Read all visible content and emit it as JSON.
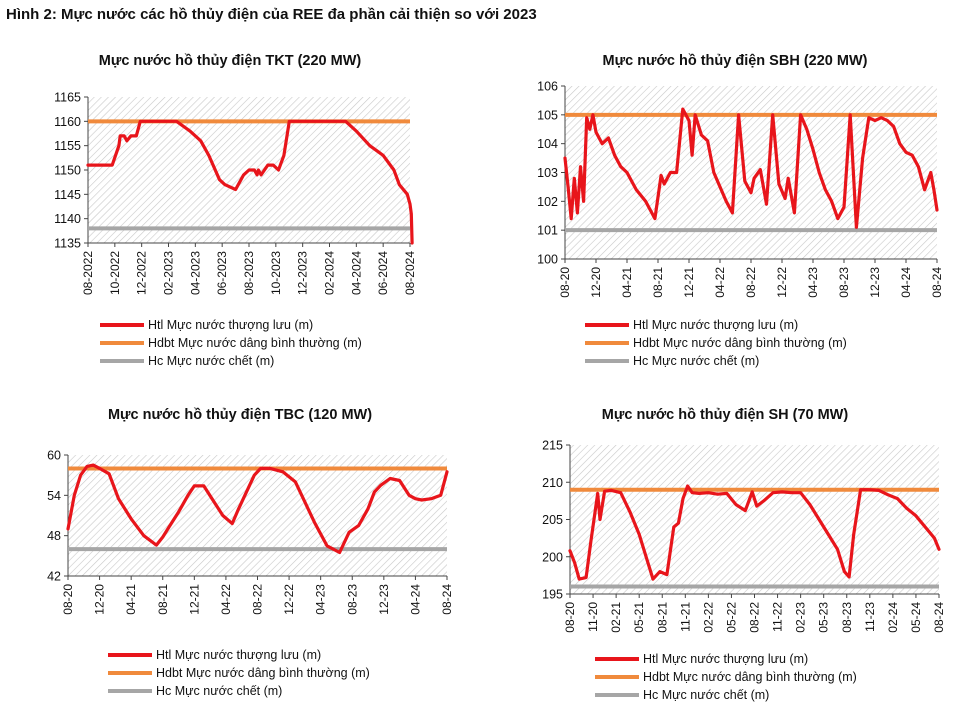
{
  "figure_title": "Hình 2: Mực nước các hồ thủy điện của REE đa phần cải thiện so với 2023",
  "colors": {
    "htl": "#e8151b",
    "hdbt": "#f08a3c",
    "hc": "#a6a6a6",
    "hatch": "#c8c8c8",
    "axis": "#444444"
  },
  "chart_data": [
    {
      "id": "tkt",
      "type": "line",
      "title": "Mực nước hồ thủy điện TKT (220 MW)",
      "ylim": [
        1135,
        1165
      ],
      "yticks": [
        1135,
        1140,
        1145,
        1150,
        1155,
        1160,
        1165
      ],
      "xticks": [
        "08-2022",
        "10-2022",
        "12-2022",
        "02-2023",
        "04-2023",
        "06-2023",
        "08-2023",
        "10-2023",
        "12-2023",
        "02-2024",
        "04-2024",
        "06-2024",
        "08-2024"
      ],
      "grid": false,
      "hatched_background": true,
      "reference_lines": [
        {
          "name": "Hdbt Mực nước dâng bình thường (m)",
          "value": 1160
        },
        {
          "name": "Hc Mực nước chết (m)",
          "value": 1138
        }
      ],
      "series": [
        {
          "name": "Htl Mực nước thượng lưu (m)",
          "x": [
            0,
            0.9,
            1.15,
            1.2,
            1.35,
            1.45,
            1.6,
            1.8,
            1.95,
            2.3,
            2.7,
            3.3,
            3.8,
            4.2,
            4.5,
            4.9,
            5.1,
            5.5,
            5.8,
            6.0,
            6.2,
            6.3,
            6.35,
            6.45,
            6.7,
            6.9,
            7.1,
            7.3,
            7.5,
            8.0,
            8.7,
            9.2,
            9.6,
            10.0,
            10.5,
            11.0,
            11.4,
            11.6,
            11.9,
            12.0,
            12.05,
            12.08
          ],
          "values": [
            1151,
            1151,
            1155,
            1157,
            1157,
            1156,
            1157,
            1157,
            1160,
            1160,
            1160,
            1160,
            1158,
            1156,
            1153,
            1148,
            1147,
            1146,
            1149,
            1150,
            1150,
            1149,
            1150,
            1149,
            1151,
            1151,
            1150,
            1153,
            1160,
            1160,
            1160,
            1160,
            1160,
            1158,
            1155,
            1153,
            1150,
            1147,
            1145,
            1143,
            1141,
            1135
          ]
        }
      ]
    },
    {
      "id": "sbh",
      "type": "line",
      "title": "Mực nước hồ thủy điện SBH (220 MW)",
      "ylim": [
        100,
        106
      ],
      "yticks": [
        100,
        101,
        102,
        103,
        104,
        105,
        106
      ],
      "xticks": [
        "08-20",
        "12-20",
        "04-21",
        "08-21",
        "12-21",
        "04-22",
        "08-22",
        "12-22",
        "04-23",
        "08-23",
        "12-23",
        "04-24",
        "08-24"
      ],
      "grid": false,
      "hatched_background": true,
      "reference_lines": [
        {
          "name": "Hdbt Mực nước dâng bình thường (m)",
          "value": 105
        },
        {
          "name": "Hc Mực nước chết (m)",
          "value": 101
        }
      ],
      "series": [
        {
          "name": "Htl Mực nước thượng lưu (m)",
          "x": [
            0,
            0.1,
            0.2,
            0.3,
            0.4,
            0.5,
            0.6,
            0.7,
            0.8,
            0.9,
            1.0,
            1.2,
            1.4,
            1.6,
            1.8,
            2.0,
            2.3,
            2.6,
            2.9,
            3.1,
            3.2,
            3.4,
            3.6,
            3.8,
            4.0,
            4.1,
            4.2,
            4.4,
            4.6,
            4.8,
            5.0,
            5.2,
            5.4,
            5.6,
            5.8,
            6.0,
            6.1,
            6.3,
            6.5,
            6.7,
            6.9,
            7.1,
            7.2,
            7.4,
            7.6,
            7.8,
            8.0,
            8.2,
            8.4,
            8.6,
            8.8,
            9.0,
            9.2,
            9.4,
            9.6,
            9.8,
            10.0,
            10.2,
            10.4,
            10.6,
            10.8,
            11.0,
            11.2,
            11.4,
            11.6,
            11.8,
            11.9,
            12.0
          ],
          "values": [
            103.5,
            102.5,
            101.4,
            102.8,
            101.6,
            103.2,
            102.0,
            104.9,
            104.5,
            105.0,
            104.4,
            104.0,
            104.2,
            103.6,
            103.2,
            103.0,
            102.4,
            102.0,
            101.4,
            102.9,
            102.6,
            103.0,
            103.0,
            105.2,
            104.8,
            103.6,
            105.0,
            104.3,
            104.1,
            103.0,
            102.5,
            102.0,
            101.6,
            105.0,
            102.7,
            102.3,
            102.8,
            103.1,
            101.9,
            105.0,
            102.6,
            102.1,
            102.8,
            101.6,
            105.0,
            104.5,
            103.8,
            103.0,
            102.4,
            102.0,
            101.4,
            101.8,
            105.0,
            101.1,
            103.5,
            104.9,
            104.8,
            104.9,
            104.8,
            104.6,
            104.0,
            103.7,
            103.6,
            103.2,
            102.4,
            103.0,
            102.4,
            101.7
          ]
        }
      ]
    },
    {
      "id": "tbc",
      "type": "line",
      "title": "Mực nước hồ thủy điện TBC (120 MW)",
      "ylim": [
        42,
        60
      ],
      "yticks": [
        42,
        48,
        54,
        60
      ],
      "xticks": [
        "08-20",
        "12-20",
        "04-21",
        "08-21",
        "12-21",
        "04-22",
        "08-22",
        "12-22",
        "04-23",
        "08-23",
        "12-23",
        "04-24",
        "08-24"
      ],
      "grid": false,
      "hatched_background": true,
      "reference_lines": [
        {
          "name": "Hdbt Mực nước dâng bình thường (m)",
          "value": 58
        },
        {
          "name": "Hc Mực nước chết (m)",
          "value": 46
        }
      ],
      "series": [
        {
          "name": "Htl Mực nước thượng lưu (m)",
          "x": [
            0,
            0.2,
            0.4,
            0.6,
            0.8,
            1.0,
            1.3,
            1.6,
            2.0,
            2.4,
            2.8,
            3.0,
            3.2,
            3.5,
            3.8,
            4.0,
            4.3,
            4.6,
            4.9,
            5.2,
            5.4,
            5.6,
            5.9,
            6.1,
            6.4,
            6.8,
            7.2,
            7.5,
            7.8,
            8.2,
            8.6,
            8.9,
            9.2,
            9.5,
            9.7,
            9.9,
            10.2,
            10.5,
            10.8,
            11.0,
            11.2,
            11.5,
            11.8,
            12.0
          ],
          "values": [
            49,
            54,
            57,
            58.3,
            58.5,
            58.0,
            57.2,
            53.5,
            50.5,
            48.0,
            46.6,
            47.8,
            49.3,
            51.5,
            54.0,
            55.4,
            55.4,
            53.2,
            51.0,
            49.8,
            52.0,
            54.0,
            57.0,
            58.0,
            58.0,
            57.5,
            56.0,
            53.0,
            50.0,
            46.5,
            45.5,
            48.5,
            49.5,
            52.0,
            54.5,
            55.5,
            56.5,
            56.2,
            54.0,
            53.5,
            53.3,
            53.5,
            54.0,
            57.5
          ]
        }
      ]
    },
    {
      "id": "sh",
      "type": "line",
      "title": "Mực nước hồ thủy điện SH (70 MW)",
      "ylim": [
        195,
        215
      ],
      "yticks": [
        195,
        200,
        205,
        210,
        215
      ],
      "xticks": [
        "08-20",
        "11-20",
        "02-21",
        "05-21",
        "08-21",
        "11-21",
        "02-22",
        "05-22",
        "08-22",
        "11-22",
        "02-23",
        "05-23",
        "08-23",
        "11-23",
        "02-24",
        "05-24",
        "08-24"
      ],
      "grid": false,
      "hatched_background": true,
      "reference_lines": [
        {
          "name": "Hdbt Mực nước dâng bình thường (m)",
          "value": 209
        },
        {
          "name": "Hc Mực nước chết (m)",
          "value": 196
        }
      ],
      "series": [
        {
          "name": "Htl Mực nước thượng lưu (m)",
          "x": [
            0,
            0.2,
            0.4,
            0.7,
            0.9,
            1.2,
            1.3,
            1.5,
            1.8,
            2.2,
            2.6,
            3.0,
            3.3,
            3.6,
            3.9,
            4.2,
            4.5,
            4.7,
            4.9,
            5.1,
            5.3,
            5.6,
            6.0,
            6.4,
            6.8,
            7.2,
            7.6,
            7.9,
            8.1,
            8.4,
            8.8,
            9.2,
            9.6,
            10.0,
            10.4,
            10.8,
            11.2,
            11.6,
            11.9,
            12.1,
            12.3,
            12.6,
            13.0,
            13.4,
            13.8,
            14.2,
            14.6,
            15.0,
            15.4,
            15.8,
            16.0
          ],
          "values": [
            200.8,
            199.2,
            197.0,
            197.2,
            202.0,
            208.5,
            205.0,
            208.8,
            208.9,
            208.6,
            206.0,
            203.0,
            200.0,
            197.0,
            198.0,
            197.6,
            204.0,
            204.5,
            207.8,
            209.5,
            208.6,
            208.5,
            208.6,
            208.4,
            208.5,
            207.0,
            206.2,
            208.7,
            206.8,
            207.5,
            208.6,
            208.7,
            208.6,
            208.6,
            207.0,
            205.0,
            203.0,
            201.0,
            198.0,
            197.3,
            203.0,
            209.0,
            209.0,
            208.9,
            208.3,
            207.8,
            206.5,
            205.5,
            204.0,
            202.5,
            201.0
          ]
        }
      ]
    }
  ]
}
